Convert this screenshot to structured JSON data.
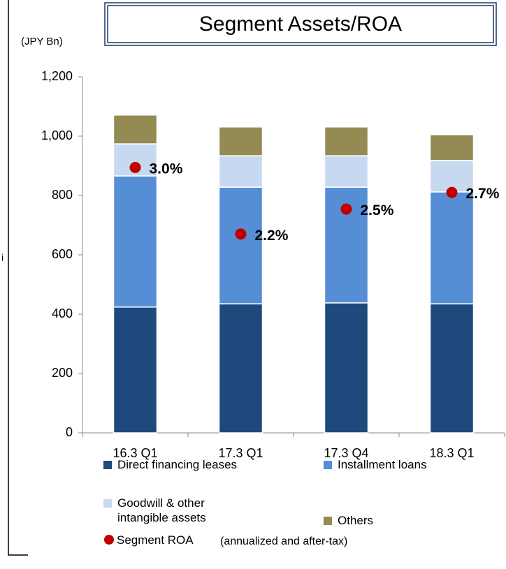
{
  "chart_data": {
    "type": "stacked_bar",
    "title": "Segment Assets/ROA",
    "y_axis_label": "(JPY Bn)",
    "side_text": "i",
    "categories": [
      "16.3 Q1",
      "17.3 Q1",
      "17.3 Q4",
      "18.3 Q1"
    ],
    "series": [
      {
        "name": "Direct financing leases",
        "color": "#1f497d",
        "values": [
          424,
          435,
          438,
          435
        ]
      },
      {
        "name": "Installment loans",
        "color": "#558ed5",
        "values": [
          442,
          393,
          390,
          377
        ]
      },
      {
        "name": "Goodwill & other intangible assets",
        "color": "#c6d9f1",
        "values": [
          108,
          106,
          106,
          106
        ]
      },
      {
        "name": "Others",
        "color": "#948a54",
        "values": [
          97,
          97,
          97,
          87
        ]
      },
      {
        "name": "Segment ROA",
        "color": "#c00000",
        "type": "scatter",
        "axis": "y2",
        "values": [
          3.0,
          2.2,
          2.5,
          2.7
        ],
        "value_labels": [
          "3.0%",
          "2.2%",
          "2.5%",
          "2.7%"
        ]
      }
    ],
    "roa_note": "(annualized and after-tax)",
    "ylim": [
      0,
      1200
    ],
    "yticks": [
      0,
      200,
      400,
      600,
      800,
      {
        "value": 1000,
        "label": "1,000"
      },
      {
        "value": 1200,
        "label": "1,200"
      }
    ],
    "y2lim": [
      -0.19,
      4.09
    ]
  }
}
